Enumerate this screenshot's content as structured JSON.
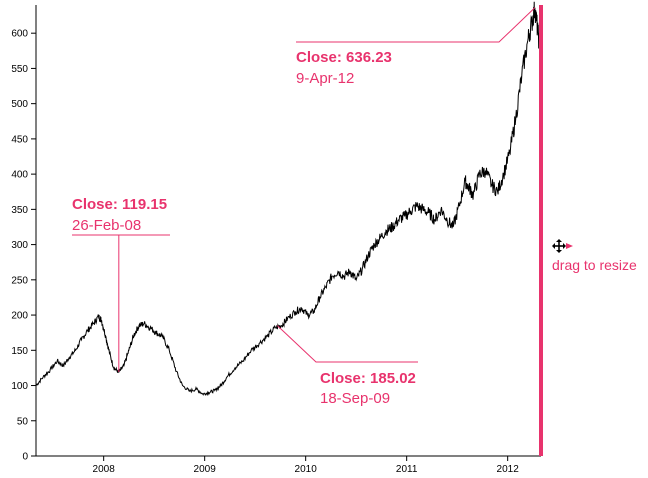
{
  "chart_data": {
    "type": "line",
    "title": "",
    "xlabel": "",
    "ylabel": "",
    "ylim": [
      0,
      640
    ],
    "xlim": [
      2007.33,
      2012.33
    ],
    "y_ticks": [
      0,
      50,
      100,
      150,
      200,
      250,
      300,
      350,
      400,
      450,
      500,
      550,
      600
    ],
    "x_ticks": [
      {
        "value": 2008,
        "label": "2008"
      },
      {
        "value": 2009,
        "label": "2009"
      },
      {
        "value": 2010,
        "label": "2010"
      },
      {
        "value": 2011,
        "label": "2011"
      },
      {
        "value": 2012,
        "label": "2012"
      }
    ],
    "series": [
      {
        "name": "Close",
        "color": "#000000",
        "points": [
          [
            2007.33,
            100
          ],
          [
            2007.4,
            112
          ],
          [
            2007.47,
            122
          ],
          [
            2007.54,
            135
          ],
          [
            2007.6,
            128
          ],
          [
            2007.66,
            140
          ],
          [
            2007.72,
            150
          ],
          [
            2007.78,
            165
          ],
          [
            2007.84,
            178
          ],
          [
            2007.9,
            188
          ],
          [
            2007.95,
            198
          ],
          [
            2007.98,
            192
          ],
          [
            2008.02,
            170
          ],
          [
            2008.06,
            145
          ],
          [
            2008.1,
            125
          ],
          [
            2008.15,
            119
          ],
          [
            2008.2,
            128
          ],
          [
            2008.25,
            150
          ],
          [
            2008.3,
            172
          ],
          [
            2008.35,
            185
          ],
          [
            2008.4,
            188
          ],
          [
            2008.46,
            182
          ],
          [
            2008.52,
            175
          ],
          [
            2008.58,
            170
          ],
          [
            2008.65,
            150
          ],
          [
            2008.72,
            120
          ],
          [
            2008.78,
            100
          ],
          [
            2008.85,
            92
          ],
          [
            2008.92,
            95
          ],
          [
            2008.98,
            88
          ],
          [
            2009.04,
            90
          ],
          [
            2009.1,
            93
          ],
          [
            2009.16,
            100
          ],
          [
            2009.22,
            112
          ],
          [
            2009.3,
            125
          ],
          [
            2009.38,
            135
          ],
          [
            2009.46,
            150
          ],
          [
            2009.54,
            160
          ],
          [
            2009.62,
            170
          ],
          [
            2009.7,
            182
          ],
          [
            2009.76,
            185
          ],
          [
            2009.82,
            195
          ],
          [
            2009.9,
            205
          ],
          [
            2009.96,
            210
          ],
          [
            2010.02,
            200
          ],
          [
            2010.08,
            205
          ],
          [
            2010.14,
            225
          ],
          [
            2010.2,
            240
          ],
          [
            2010.26,
            255
          ],
          [
            2010.32,
            262
          ],
          [
            2010.38,
            255
          ],
          [
            2010.44,
            262
          ],
          [
            2010.5,
            250
          ],
          [
            2010.56,
            265
          ],
          [
            2010.62,
            285
          ],
          [
            2010.68,
            300
          ],
          [
            2010.74,
            310
          ],
          [
            2010.8,
            320
          ],
          [
            2010.86,
            325
          ],
          [
            2010.92,
            335
          ],
          [
            2010.98,
            340
          ],
          [
            2011.04,
            348
          ],
          [
            2011.1,
            355
          ],
          [
            2011.16,
            350
          ],
          [
            2011.22,
            345
          ],
          [
            2011.28,
            335
          ],
          [
            2011.34,
            350
          ],
          [
            2011.4,
            335
          ],
          [
            2011.46,
            325
          ],
          [
            2011.52,
            355
          ],
          [
            2011.58,
            390
          ],
          [
            2011.62,
            380
          ],
          [
            2011.66,
            370
          ],
          [
            2011.72,
            400
          ],
          [
            2011.78,
            405
          ],
          [
            2011.84,
            385
          ],
          [
            2011.9,
            375
          ],
          [
            2011.96,
            400
          ],
          [
            2012.02,
            430
          ],
          [
            2012.08,
            480
          ],
          [
            2012.14,
            540
          ],
          [
            2012.2,
            590
          ],
          [
            2012.24,
            615
          ],
          [
            2012.27,
            636
          ],
          [
            2012.3,
            600
          ],
          [
            2012.33,
            570
          ]
        ]
      }
    ],
    "annotations": [
      {
        "title": "Close: 119.15",
        "date": "26-Feb-08",
        "x": 2008.15,
        "y": 119.15,
        "color": "#e8336d"
      },
      {
        "title": "Close: 185.02",
        "date": "18-Sep-09",
        "x": 2009.72,
        "y": 185.02,
        "color": "#e8336d"
      },
      {
        "title": "Close: 636.23",
        "date": "9-Apr-12",
        "x": 2012.27,
        "y": 636.23,
        "color": "#e8336d"
      }
    ],
    "resize_handle": {
      "label": "drag to resize",
      "color": "#e8336d"
    }
  }
}
